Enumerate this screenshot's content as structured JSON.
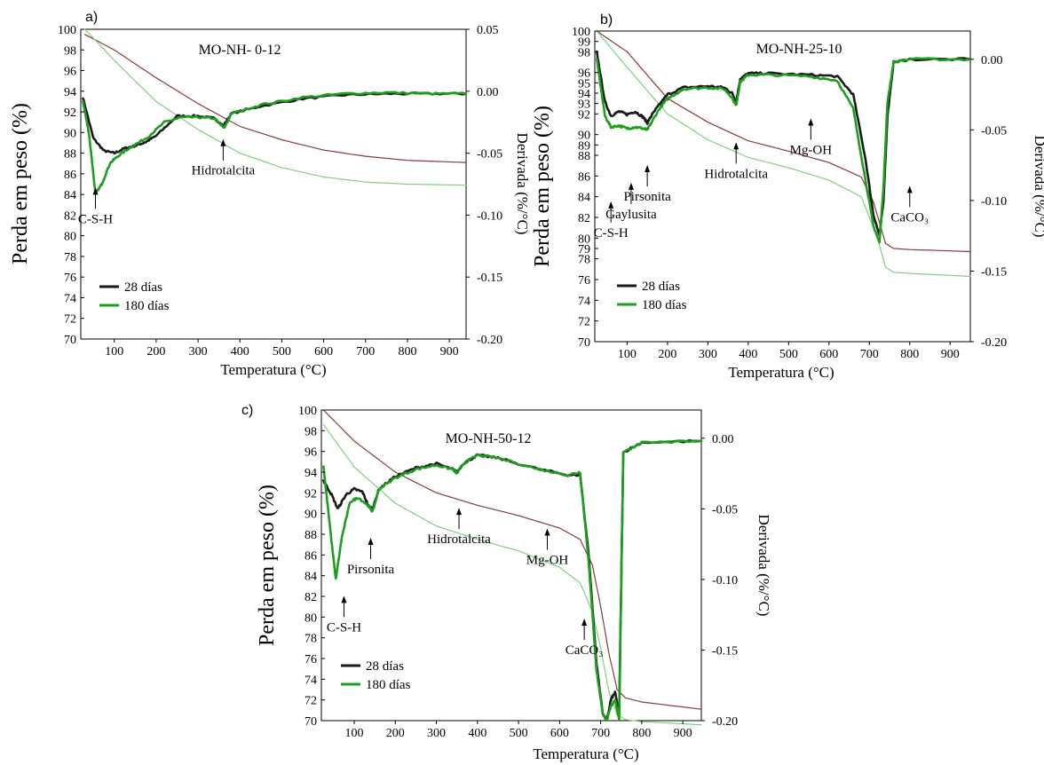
{
  "chart_data": [
    {
      "type": "line",
      "panel_label": "a)",
      "title": "MO-NH- 0-12",
      "xlabel": "Temperatura (°C)",
      "ylabel": "Perda em peso (%)",
      "y2label": "Derivada (%/°C)",
      "xlim": [
        20,
        940
      ],
      "ylim": [
        70,
        100
      ],
      "y2lim": [
        -0.2,
        0.05
      ],
      "xticks": [
        100,
        200,
        300,
        400,
        500,
        600,
        700,
        800,
        900
      ],
      "yticks": [
        70,
        72,
        74,
        76,
        78,
        80,
        82,
        84,
        86,
        88,
        90,
        92,
        94,
        96,
        98,
        100
      ],
      "y2ticks": [
        0.05,
        0.0,
        -0.05,
        -0.1,
        -0.15,
        -0.2
      ],
      "y2ticklabels": [
        "0.05",
        "0.00",
        "-0.05",
        "-0.10",
        "-0.15",
        "-0.20"
      ],
      "legend": [
        "28 días",
        "180 días"
      ],
      "legend_position": "bottom-left",
      "annotations": [
        {
          "text": "C-S-H",
          "x": 55,
          "y": 82.6
        },
        {
          "text": "Hidrotalcita",
          "x": 360,
          "y": 87.3
        }
      ],
      "series": [
        {
          "name": "28 días",
          "kind": "mass",
          "axis": "left",
          "x": [
            30,
            100,
            200,
            300,
            400,
            500,
            600,
            700,
            800,
            940
          ],
          "y": [
            99.5,
            98.0,
            95.3,
            92.8,
            90.6,
            89.3,
            88.3,
            87.7,
            87.3,
            87.1
          ]
        },
        {
          "name": "180 días",
          "kind": "mass",
          "axis": "left",
          "x": [
            30,
            100,
            200,
            300,
            400,
            500,
            600,
            700,
            800,
            940
          ],
          "y": [
            100,
            97.0,
            93.0,
            90.3,
            88.0,
            86.6,
            85.7,
            85.2,
            85.0,
            84.9
          ]
        },
        {
          "name": "28 días",
          "kind": "deriv",
          "axis": "right",
          "x": [
            25,
            50,
            75,
            100,
            125,
            150,
            175,
            200,
            250,
            300,
            340,
            360,
            380,
            450,
            550,
            650,
            750,
            850,
            940
          ],
          "y": [
            -0.005,
            -0.038,
            -0.048,
            -0.05,
            -0.046,
            -0.044,
            -0.041,
            -0.036,
            -0.02,
            -0.02,
            -0.022,
            -0.028,
            -0.018,
            -0.012,
            -0.006,
            -0.003,
            -0.002,
            -0.002,
            -0.002
          ]
        },
        {
          "name": "180 días",
          "kind": "deriv",
          "axis": "right",
          "x": [
            25,
            40,
            55,
            70,
            90,
            110,
            140,
            180,
            220,
            260,
            300,
            340,
            362,
            380,
            450,
            550,
            650,
            750,
            850,
            940
          ],
          "y": [
            -0.008,
            -0.035,
            -0.083,
            -0.075,
            -0.058,
            -0.052,
            -0.045,
            -0.037,
            -0.025,
            -0.021,
            -0.021,
            -0.022,
            -0.03,
            -0.018,
            -0.011,
            -0.005,
            -0.002,
            -0.001,
            -0.002,
            -0.002
          ]
        }
      ]
    },
    {
      "type": "line",
      "panel_label": "b)",
      "title": "MO-NH-25-10",
      "xlabel": "Temperatura (°C)",
      "ylabel": "Perda em peso (%)",
      "y2label": "Derivada (%/°C)",
      "xlim": [
        20,
        950
      ],
      "ylim": [
        70,
        100
      ],
      "y2lim": [
        -0.2,
        0.02
      ],
      "xticks": [
        100,
        200,
        300,
        400,
        500,
        600,
        700,
        800,
        900
      ],
      "yticks": [
        70,
        72,
        74,
        76,
        78,
        79,
        80,
        82,
        84,
        86,
        88,
        89,
        90,
        92,
        93,
        94,
        95,
        96,
        98,
        99,
        100
      ],
      "y2ticks": [
        0.0,
        -0.05,
        -0.1,
        -0.15,
        -0.2
      ],
      "y2ticklabels": [
        "0.00",
        "-0.05",
        "-0.10",
        "-0.15",
        "-0.20"
      ],
      "legend": [
        "28 días",
        "180 días"
      ],
      "legend_position": "bottom-left",
      "annotations": [
        {
          "text": "C-S-H",
          "x": 60,
          "y": 81.5
        },
        {
          "text": "Gaylusita",
          "x": 110,
          "y": 83.3
        },
        {
          "text": "Pirsonita",
          "x": 150,
          "y": 85.0
        },
        {
          "text": "Hidrotalcita",
          "x": 370,
          "y": 87.2
        },
        {
          "text": "Mg-OH",
          "x": 555,
          "y": 89.5
        },
        {
          "text": "CaCO₃",
          "x": 800,
          "y": 83.0
        }
      ],
      "series": [
        {
          "name": "28 días",
          "kind": "mass",
          "axis": "left",
          "x": [
            25,
            100,
            200,
            300,
            400,
            500,
            600,
            680,
            710,
            740,
            760,
            800,
            950
          ],
          "y": [
            100,
            98.0,
            93.5,
            91.2,
            89.4,
            88.4,
            87.3,
            85.9,
            83.5,
            79.5,
            79.0,
            78.9,
            78.7
          ]
        },
        {
          "name": "180 días",
          "kind": "mass",
          "axis": "left",
          "x": [
            25,
            100,
            200,
            300,
            400,
            500,
            600,
            680,
            720,
            740,
            760,
            800,
            950
          ],
          "y": [
            100,
            96.5,
            92.0,
            89.5,
            87.8,
            86.8,
            85.6,
            84.0,
            80.0,
            77.2,
            76.7,
            76.6,
            76.3
          ]
        },
        {
          "name": "28 días",
          "kind": "deriv",
          "axis": "right",
          "x": [
            25,
            45,
            60,
            80,
            100,
            120,
            140,
            150,
            160,
            180,
            200,
            240,
            300,
            340,
            360,
            370,
            380,
            400,
            450,
            550,
            620,
            660,
            690,
            710,
            725,
            735,
            745,
            760,
            800,
            950
          ],
          "y": [
            0.005,
            -0.03,
            -0.04,
            -0.037,
            -0.039,
            -0.037,
            -0.041,
            -0.045,
            -0.04,
            -0.032,
            -0.025,
            -0.02,
            -0.019,
            -0.02,
            -0.024,
            -0.03,
            -0.014,
            -0.01,
            -0.01,
            -0.011,
            -0.012,
            -0.025,
            -0.07,
            -0.11,
            -0.125,
            -0.1,
            -0.04,
            -0.002,
            0.0,
            0.0
          ]
        },
        {
          "name": "180 días",
          "kind": "deriv",
          "axis": "right",
          "x": [
            25,
            45,
            60,
            80,
            100,
            120,
            140,
            150,
            160,
            180,
            200,
            240,
            300,
            340,
            360,
            370,
            380,
            400,
            450,
            550,
            620,
            660,
            690,
            710,
            725,
            735,
            745,
            760,
            800,
            950
          ],
          "y": [
            0.0,
            -0.04,
            -0.048,
            -0.047,
            -0.049,
            -0.048,
            -0.049,
            -0.05,
            -0.045,
            -0.035,
            -0.028,
            -0.021,
            -0.02,
            -0.021,
            -0.027,
            -0.033,
            -0.016,
            -0.011,
            -0.011,
            -0.012,
            -0.015,
            -0.035,
            -0.085,
            -0.118,
            -0.13,
            -0.09,
            -0.03,
            -0.002,
            0.0,
            0.0
          ]
        }
      ]
    },
    {
      "type": "line",
      "panel_label": "c)",
      "title": "MO-NH-50-12",
      "xlabel": "Temperatura (°C)",
      "ylabel": "Perda em peso (%)",
      "y2label": "Derivada (%/°C)",
      "xlim": [
        20,
        945
      ],
      "ylim": [
        70,
        100
      ],
      "y2lim": [
        -0.2,
        0.02
      ],
      "xticks": [
        100,
        200,
        300,
        400,
        500,
        600,
        700,
        800,
        900
      ],
      "yticks": [
        70,
        72,
        74,
        76,
        78,
        80,
        82,
        84,
        86,
        88,
        90,
        92,
        94,
        96,
        98,
        100
      ],
      "y2ticks": [
        0.0,
        -0.05,
        -0.1,
        -0.15,
        -0.2
      ],
      "y2ticklabels": [
        "0.00",
        "-0.05",
        "-0.10",
        "-0.15",
        "-0.20"
      ],
      "legend": [
        "28 días",
        "180 días"
      ],
      "legend_position": "bottom-left",
      "annotations": [
        {
          "text": "Pirsonita",
          "x": 140,
          "y": 85.6
        },
        {
          "text": "C-S-H",
          "x": 75,
          "y": 80.0
        },
        {
          "text": "Hidrotalcita",
          "x": 355,
          "y": 88.5
        },
        {
          "text": "Mg-OH",
          "x": 570,
          "y": 86.5
        },
        {
          "text": "CaCO₃",
          "x": 660,
          "y": 77.8
        }
      ],
      "series": [
        {
          "name": "28 días",
          "kind": "mass",
          "axis": "left",
          "x": [
            25,
            100,
            200,
            300,
            400,
            500,
            600,
            650,
            680,
            700,
            720,
            740,
            760,
            800,
            945
          ],
          "y": [
            100,
            97.0,
            94.0,
            92.0,
            90.8,
            89.8,
            88.6,
            87.5,
            85.0,
            81.0,
            76.5,
            73.0,
            72.2,
            71.8,
            71.1
          ]
        },
        {
          "name": "180 días",
          "kind": "mass",
          "axis": "left",
          "x": [
            25,
            100,
            200,
            300,
            400,
            500,
            600,
            650,
            680,
            700,
            720,
            740,
            760,
            800,
            945
          ],
          "y": [
            98.6,
            94.5,
            91.0,
            88.8,
            87.5,
            86.4,
            84.8,
            83.3,
            80.5,
            77.0,
            72.8,
            70.6,
            70.1,
            69.9,
            69.6
          ]
        },
        {
          "name": "28 días",
          "kind": "deriv",
          "axis": "right",
          "x": [
            25,
            45,
            60,
            80,
            100,
            120,
            135,
            145,
            160,
            200,
            250,
            300,
            340,
            350,
            365,
            400,
            450,
            550,
            620,
            650,
            670,
            690,
            705,
            715,
            725,
            735,
            745,
            755,
            800,
            945
          ],
          "y": [
            -0.03,
            -0.04,
            -0.05,
            -0.04,
            -0.036,
            -0.038,
            -0.048,
            -0.05,
            -0.036,
            -0.027,
            -0.021,
            -0.018,
            -0.022,
            -0.024,
            -0.018,
            -0.012,
            -0.014,
            -0.022,
            -0.026,
            -0.026,
            -0.08,
            -0.16,
            -0.195,
            -0.2,
            -0.185,
            -0.18,
            -0.195,
            -0.01,
            -0.003,
            -0.002
          ]
        },
        {
          "name": "180 días",
          "kind": "deriv",
          "axis": "right",
          "x": [
            25,
            40,
            55,
            70,
            90,
            110,
            135,
            145,
            160,
            200,
            250,
            300,
            340,
            350,
            365,
            400,
            450,
            550,
            620,
            650,
            670,
            690,
            705,
            715,
            725,
            735,
            745,
            755,
            800,
            945
          ],
          "y": [
            -0.02,
            -0.06,
            -0.1,
            -0.07,
            -0.045,
            -0.042,
            -0.048,
            -0.052,
            -0.036,
            -0.028,
            -0.022,
            -0.019,
            -0.022,
            -0.025,
            -0.018,
            -0.012,
            -0.014,
            -0.022,
            -0.026,
            -0.024,
            -0.085,
            -0.165,
            -0.195,
            -0.2,
            -0.19,
            -0.185,
            -0.2,
            -0.01,
            -0.003,
            -0.002
          ]
        }
      ]
    }
  ],
  "style": {
    "mass_28_color": "#8b3a3a",
    "mass_180_color": "#7ed07e",
    "deriv_28_color": "#1a1a1a",
    "deriv_180_color": "#1e9e1e"
  }
}
